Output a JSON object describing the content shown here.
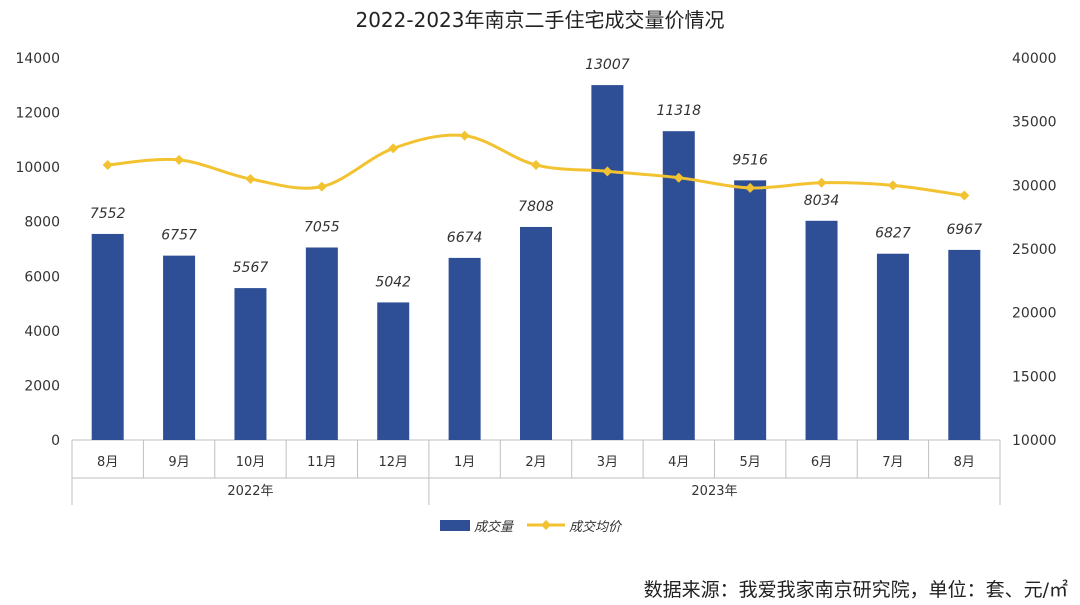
{
  "chart_data": {
    "type": "bar+line",
    "title": "2022-2023年南京二手住宅成交量价情况",
    "categories": [
      "8月",
      "9月",
      "10月",
      "11月",
      "12月",
      "1月",
      "2月",
      "3月",
      "4月",
      "5月",
      "6月",
      "7月",
      "8月"
    ],
    "groups": [
      {
        "label": "2022年",
        "start": 0,
        "end": 4
      },
      {
        "label": "2023年",
        "start": 5,
        "end": 12
      }
    ],
    "series": [
      {
        "name": "成交量",
        "type": "bar",
        "axis": "left",
        "color": "#2e4e95",
        "values": [
          7552,
          6757,
          5567,
          7055,
          5042,
          6674,
          7808,
          13007,
          11318,
          9516,
          8034,
          6827,
          6967
        ]
      },
      {
        "name": "成交均价",
        "type": "line",
        "axis": "right",
        "color": "#f2c230",
        "values": [
          31600,
          32000,
          30500,
          29900,
          32900,
          33900,
          31600,
          31100,
          30600,
          29800,
          30200,
          30000,
          29200
        ]
      }
    ],
    "y_left": {
      "min": 0,
      "max": 14000,
      "ticks": [
        0,
        2000,
        4000,
        6000,
        8000,
        10000,
        12000,
        14000
      ]
    },
    "y_right": {
      "min": 10000,
      "max": 40000,
      "ticks": [
        10000,
        15000,
        20000,
        25000,
        30000,
        35000,
        40000
      ]
    },
    "legend_position": "bottom-center",
    "grid": false
  },
  "source_text": "数据来源：我爱我家南京研究院，单位：套、元/㎡"
}
